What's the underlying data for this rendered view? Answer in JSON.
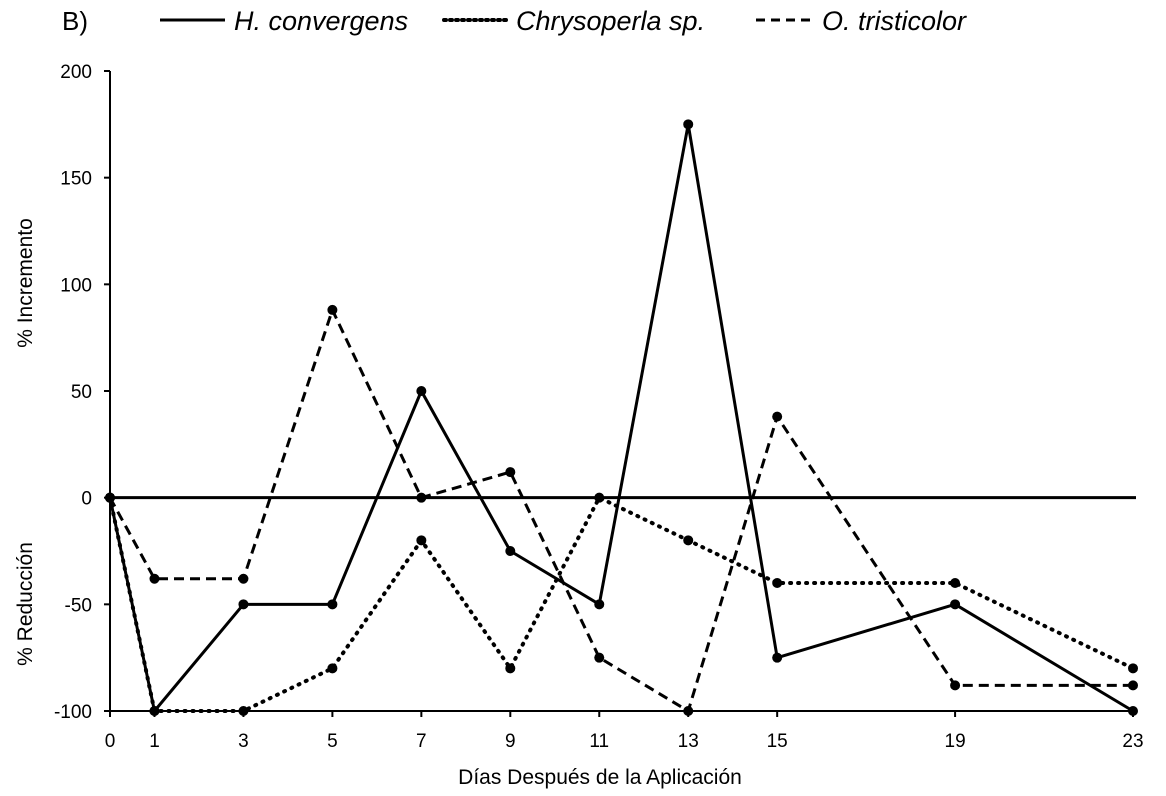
{
  "panel_label": "B)",
  "chart_data": {
    "type": "line",
    "xlabel": "Días Después de la Aplicación",
    "ylabel_top": "% Incremento",
    "ylabel_bottom": "% Reducción",
    "x": [
      0,
      1,
      3,
      5,
      7,
      9,
      11,
      13,
      15,
      19,
      23
    ],
    "xticks": [
      "0",
      "1",
      "3",
      "5",
      "7",
      "9",
      "11",
      "13",
      "15",
      "19",
      "23"
    ],
    "xlim": [
      0,
      23
    ],
    "yticks": [
      "200",
      "150",
      "100",
      "50",
      "0",
      "-50",
      "-100"
    ],
    "ytick_values": [
      200,
      150,
      100,
      50,
      0,
      -50,
      -100
    ],
    "ylim": [
      -100,
      200
    ],
    "legend_position": "top",
    "grid": false,
    "series": [
      {
        "name": "H. convergens",
        "style": "solid",
        "color": "#000000",
        "values": [
          0,
          -100,
          -50,
          -50,
          50,
          -25,
          -50,
          175,
          -75,
          -50,
          -100
        ]
      },
      {
        "name": "Chrysoperla sp.",
        "style": "dotted",
        "color": "#000000",
        "values": [
          0,
          -100,
          -100,
          -80,
          -20,
          -80,
          0,
          -20,
          -40,
          -40,
          -80
        ]
      },
      {
        "name": "O. tristicolor",
        "style": "dashed",
        "color": "#000000",
        "values": [
          0,
          -38,
          -38,
          88,
          0,
          12,
          -75,
          -100,
          38,
          -88,
          -88
        ]
      }
    ]
  }
}
